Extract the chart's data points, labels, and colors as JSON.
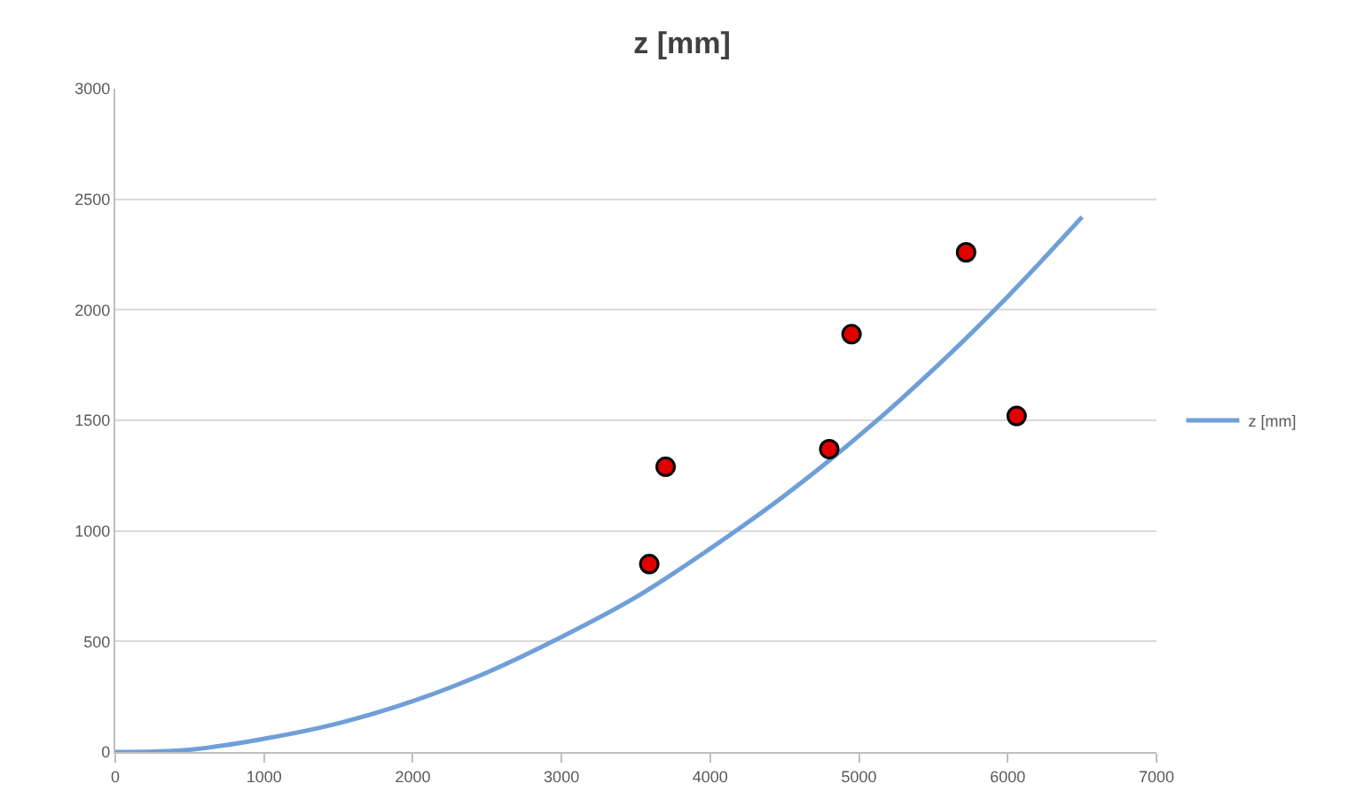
{
  "chart_data": {
    "type": "line",
    "title": "z [mm]",
    "xlim": [
      0,
      7000
    ],
    "xticks": [
      0,
      1000,
      2000,
      3000,
      4000,
      5000,
      6000,
      7000
    ],
    "ylim": [
      0,
      3000
    ],
    "yticks": [
      0,
      500,
      1000,
      1500,
      2000,
      2500,
      3000
    ],
    "grid": "y",
    "legend": "right",
    "series": [
      {
        "name": "z [mm]",
        "color": "#6f9fd8",
        "marker": "none",
        "x": [
          0,
          500,
          1000,
          1500,
          2000,
          2500,
          3000,
          3500,
          4000,
          4500,
          5000,
          5500,
          6000,
          6500
        ],
        "values": [
          0,
          10,
          60,
          130,
          230,
          360,
          520,
          700,
          920,
          1160,
          1430,
          1730,
          2060,
          2420
        ]
      },
      {
        "type": "scatter",
        "color": "#e00000",
        "marker": "circle",
        "x": [
          3590,
          3700,
          4800,
          4950,
          5720,
          6060
        ],
        "values": [
          850,
          1290,
          1370,
          1890,
          2260,
          1520
        ]
      }
    ]
  }
}
